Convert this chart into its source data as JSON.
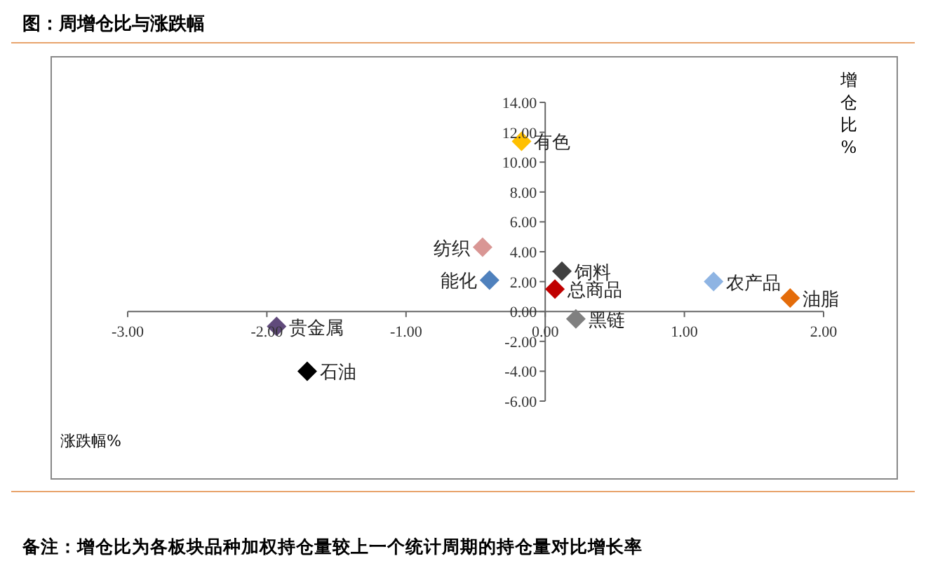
{
  "chart_data": {
    "type": "scatter",
    "title": "图：周增仓比与涨跌幅",
    "xlabel": "涨跌幅%",
    "ylabel": "增仓比%",
    "annotations": [
      "备注：增仓比为各板块品种加权持仓量较上一个统计周期的持仓量对比增长率"
    ],
    "series": [
      {
        "name": "有色",
        "color": "#ffc000",
        "x": [
          -0.17
        ],
        "values": [
          11.4
        ]
      },
      {
        "name": "纺织",
        "color": "#d99694",
        "x": [
          -0.45
        ],
        "values": [
          4.3
        ]
      },
      {
        "name": "能化",
        "color": "#4f81bd",
        "x": [
          -0.4
        ],
        "values": [
          2.1
        ]
      },
      {
        "name": "饲料",
        "color": "#404040",
        "x": [
          0.12
        ],
        "values": [
          2.7
        ]
      },
      {
        "name": "总商品",
        "color": "#c00000",
        "x": [
          0.07
        ],
        "values": [
          1.5
        ]
      },
      {
        "name": "黑链",
        "color": "#808080",
        "x": [
          0.22
        ],
        "values": [
          -0.5
        ]
      },
      {
        "name": "农产品",
        "color": "#8eb4e3",
        "x": [
          1.21
        ],
        "values": [
          2.0
        ]
      },
      {
        "name": "油脂",
        "color": "#e46c0a",
        "x": [
          1.76
        ],
        "values": [
          0.9
        ]
      },
      {
        "name": "贵金属",
        "color": "#604a7b",
        "x": [
          -1.93
        ],
        "values": [
          -1.0
        ]
      },
      {
        "name": "石油",
        "color": "#000000",
        "x": [
          -1.71
        ],
        "values": [
          -4.0
        ]
      }
    ],
    "xlim": [
      -3,
      2
    ],
    "xticks": [
      {
        "value": -3,
        "label": "-3.00"
      },
      {
        "value": -2,
        "label": "-2.00"
      },
      {
        "value": -1,
        "label": "-1.00"
      },
      {
        "value": 0,
        "label": "0.00"
      },
      {
        "value": 1,
        "label": "1.00"
      },
      {
        "value": 2,
        "label": "2.00"
      }
    ],
    "ylim": [
      -6,
      14
    ],
    "yticks": [
      {
        "value": -6,
        "label": "-6.00"
      },
      {
        "value": -4,
        "label": "-4.00"
      },
      {
        "value": -2,
        "label": "-2.00"
      },
      {
        "value": 0,
        "label": "0.00"
      },
      {
        "value": 2,
        "label": "2.00"
      },
      {
        "value": 4,
        "label": "4.00"
      },
      {
        "value": 6,
        "label": "6.00"
      },
      {
        "value": 8,
        "label": "8.00"
      },
      {
        "value": 10,
        "label": "10.00"
      },
      {
        "value": 12,
        "label": "12.00"
      },
      {
        "value": 14,
        "label": "14.00"
      }
    ],
    "marker": "diamond",
    "legend": false,
    "grid": false
  }
}
